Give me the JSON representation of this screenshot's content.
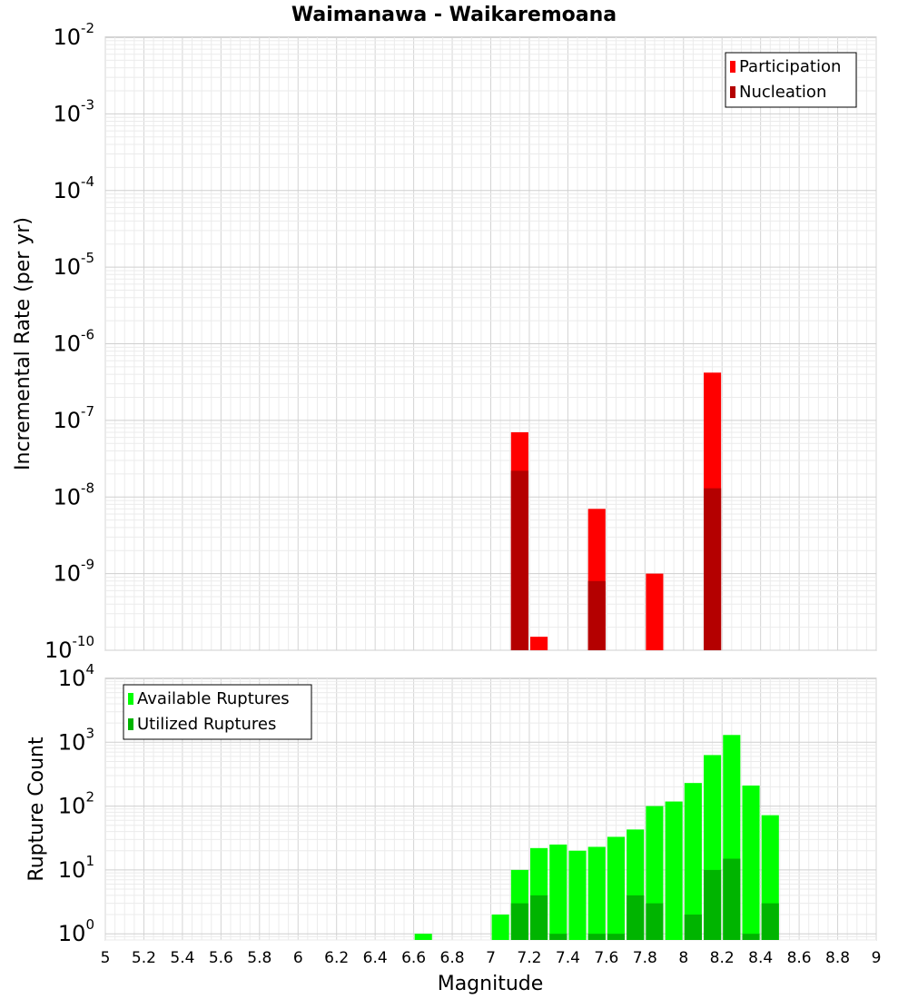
{
  "title": "Waimanawa - Waikaremoana",
  "xlabel": "Magnitude",
  "x_ticks": [
    "5",
    "5.2",
    "5.4",
    "5.6",
    "5.8",
    "6",
    "6.2",
    "6.4",
    "6.6",
    "6.8",
    "7",
    "7.2",
    "7.4",
    "7.6",
    "7.8",
    "8",
    "8.2",
    "8.4",
    "8.6",
    "8.8",
    "9"
  ],
  "xlim": [
    5,
    9
  ],
  "bin_width": 0.1,
  "chart_data": [
    {
      "type": "bar",
      "ylabel": "Incremental Rate (per yr)",
      "yscale": "log",
      "ylim": [
        1e-10,
        0.01
      ],
      "y_ticks": [
        {
          "base": "10",
          "exp": "-2"
        },
        {
          "base": "10",
          "exp": "-3"
        },
        {
          "base": "10",
          "exp": "-4"
        },
        {
          "base": "10",
          "exp": "-5"
        },
        {
          "base": "10",
          "exp": "-6"
        },
        {
          "base": "10",
          "exp": "-7"
        },
        {
          "base": "10",
          "exp": "-8"
        },
        {
          "base": "10",
          "exp": "-9"
        },
        {
          "base": "10",
          "exp": "-10"
        }
      ],
      "legend_position": "top-right",
      "grid": true,
      "series": [
        {
          "name": "Participation",
          "color": "#ff0000",
          "x": [
            7.15,
            7.25,
            7.55,
            7.85,
            8.15
          ],
          "values": [
            7e-08,
            1.5e-10,
            7e-09,
            1e-09,
            4.2e-07
          ]
        },
        {
          "name": "Nucleation",
          "color": "#b40000",
          "x": [
            7.15,
            7.55,
            8.15
          ],
          "values": [
            2.2e-08,
            8e-10,
            1.3e-08
          ]
        }
      ]
    },
    {
      "type": "bar",
      "ylabel": "Rupture Count",
      "yscale": "log",
      "ylim": [
        0.8,
        10000
      ],
      "y_ticks": [
        {
          "base": "10",
          "exp": "4"
        },
        {
          "base": "10",
          "exp": "3"
        },
        {
          "base": "10",
          "exp": "2"
        },
        {
          "base": "10",
          "exp": "1"
        },
        {
          "base": "10",
          "exp": "0"
        }
      ],
      "legend_position": "top-left",
      "grid": true,
      "series": [
        {
          "name": "Available Ruptures",
          "color": "#00ff00",
          "x": [
            6.65,
            7.05,
            7.15,
            7.25,
            7.35,
            7.45,
            7.55,
            7.65,
            7.75,
            7.85,
            7.95,
            8.05,
            8.15,
            8.25,
            8.35,
            8.45
          ],
          "values": [
            1,
            2,
            10,
            22,
            25,
            20,
            23,
            33,
            43,
            100,
            118,
            230,
            630,
            1300,
            210,
            72
          ]
        },
        {
          "name": "Utilized Ruptures",
          "color": "#00b400",
          "x": [
            7.15,
            7.25,
            7.35,
            7.55,
            7.65,
            7.75,
            7.85,
            8.05,
            8.15,
            8.25,
            8.35,
            8.45
          ],
          "values": [
            3,
            4,
            1,
            1,
            1,
            4,
            3,
            2,
            10,
            15,
            1,
            3
          ]
        }
      ]
    }
  ]
}
